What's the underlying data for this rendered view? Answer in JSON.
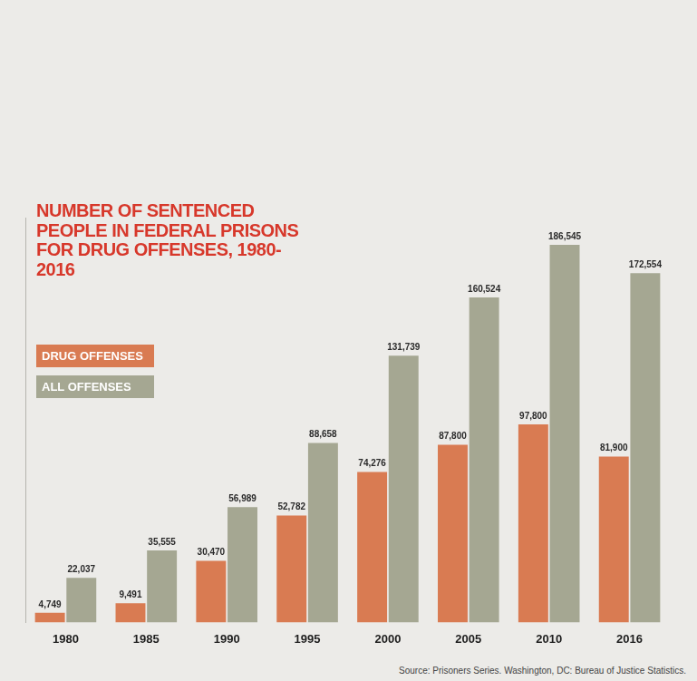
{
  "chart_data": {
    "type": "bar",
    "title": "NUMBER OF SENTENCED PEOPLE IN FEDERAL PRISONS FOR DRUG OFFENSES, 1980-2016",
    "categories": [
      "1980",
      "1985",
      "1990",
      "1995",
      "2000",
      "2005",
      "2010",
      "2016"
    ],
    "series": [
      {
        "name": "DRUG OFFENSES",
        "color": "#d97b52",
        "values": [
          4749,
          9491,
          30470,
          52782,
          74276,
          87800,
          97800,
          81900
        ],
        "value_labels": [
          "4,749",
          "9,491",
          "30,470",
          "52,782",
          "74,276",
          "87,800",
          "97,800",
          "81,900"
        ]
      },
      {
        "name": "ALL OFFENSES",
        "color": "#a5a792",
        "values": [
          22037,
          35555,
          56989,
          88658,
          131739,
          160524,
          186545,
          172554
        ],
        "value_labels": [
          "22,037",
          "35,555",
          "56,989",
          "88,658",
          "131,739",
          "160,524",
          "186,545",
          "172,554"
        ]
      }
    ],
    "ylim": [
      0,
      200000
    ],
    "grid": false,
    "legend": "left",
    "data_labels": true,
    "tick_labels": "x",
    "source": "Source: Prisoners Series. Washington, DC: Bureau of Justice Statistics."
  }
}
